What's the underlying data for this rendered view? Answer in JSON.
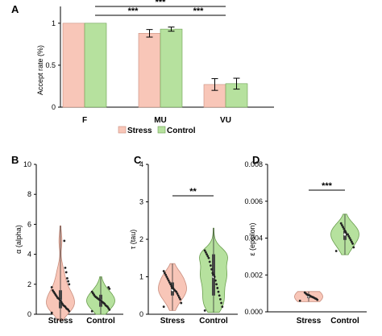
{
  "colors": {
    "stress": "#F8C6B8",
    "control": "#B6E19E",
    "stress_edge": "#c98e7e",
    "control_edge": "#6a9e4e",
    "dot": "#222222"
  },
  "chart_data": [
    {
      "panel": "A",
      "type": "bar",
      "ylabel": "Accept rate (%)",
      "ylim": [
        0,
        1.2
      ],
      "yticks": [
        "0",
        "0.5",
        "1"
      ],
      "categories": [
        "F",
        "MU",
        "VU"
      ],
      "series": [
        {
          "name": "Stress",
          "values": [
            1.0,
            0.88,
            0.27
          ],
          "errors": [
            0,
            0.045,
            0.07
          ]
        },
        {
          "name": "Control",
          "values": [
            1.0,
            0.93,
            0.28
          ],
          "errors": [
            0,
            0.025,
            0.065
          ]
        }
      ],
      "legend_position": "bottom",
      "significance": [
        {
          "from": "F",
          "to": "MU",
          "label": "***"
        },
        {
          "from": "F",
          "to": "VU",
          "label": "***"
        },
        {
          "from": "MU",
          "to": "VU",
          "label": "***"
        }
      ]
    },
    {
      "panel": "B",
      "type": "violin",
      "ylabel": "α (alpha)",
      "ylim": [
        0,
        10
      ],
      "yticks": [
        "0",
        "2",
        "4",
        "6",
        "8",
        "10"
      ],
      "categories": [
        "Stress",
        "Control"
      ],
      "groups": [
        {
          "name": "Stress",
          "median": 0.9,
          "q1": 0.4,
          "q3": 1.6,
          "min": -0.4,
          "max": 5.9,
          "points": [
            0.1,
            0.2,
            0.3,
            0.35,
            0.4,
            0.5,
            0.55,
            0.6,
            0.7,
            0.8,
            0.9,
            1.0,
            1.05,
            1.1,
            1.2,
            1.3,
            1.4,
            1.5,
            1.6,
            1.8,
            2.0,
            2.2,
            2.4,
            2.8,
            3.1,
            4.9
          ]
        },
        {
          "name": "Control",
          "median": 0.9,
          "q1": 0.5,
          "q3": 1.3,
          "min": 0,
          "max": 2.5,
          "points": [
            0.2,
            0.3,
            0.4,
            0.5,
            0.55,
            0.6,
            0.7,
            0.75,
            0.8,
            0.85,
            0.9,
            0.95,
            1.0,
            1.05,
            1.1,
            1.15,
            1.2,
            1.3,
            1.4,
            1.5,
            1.7,
            1.8
          ]
        }
      ]
    },
    {
      "panel": "C",
      "type": "violin",
      "ylabel": "τ (tau)",
      "ylim": [
        0,
        4
      ],
      "yticks": [
        "0",
        "1",
        "2",
        "3",
        "4"
      ],
      "categories": [
        "Stress",
        "Control"
      ],
      "significance": [
        {
          "from": "Stress",
          "to": "Control",
          "label": "**"
        }
      ],
      "groups": [
        {
          "name": "Stress",
          "median": 0.65,
          "q1": 0.5,
          "q3": 0.85,
          "min": 0.1,
          "max": 1.35,
          "points": [
            0.2,
            0.3,
            0.4,
            0.45,
            0.5,
            0.55,
            0.6,
            0.62,
            0.65,
            0.68,
            0.7,
            0.75,
            0.8,
            0.85,
            0.9,
            0.95,
            1.0,
            1.05,
            1.1,
            1.15
          ]
        },
        {
          "name": "Control",
          "median": 1.0,
          "q1": 0.5,
          "q3": 1.6,
          "min": 0.05,
          "max": 2.3,
          "points": [
            0.1,
            0.2,
            0.3,
            0.4,
            0.5,
            0.6,
            0.7,
            0.8,
            0.9,
            1.0,
            1.05,
            1.1,
            1.2,
            1.3,
            1.4,
            1.5,
            1.55,
            1.6,
            1.65,
            1.7
          ]
        }
      ]
    },
    {
      "panel": "D",
      "type": "violin",
      "ylabel": "ε (epsilon)",
      "ylim": [
        0,
        0.008
      ],
      "yticks": [
        "0.000",
        "0.002",
        "0.004",
        "0.006",
        "0.008"
      ],
      "categories": [
        "Stress",
        "Control"
      ],
      "significance": [
        {
          "from": "Stress",
          "to": "Control",
          "label": "***"
        }
      ],
      "groups": [
        {
          "name": "Stress",
          "median": 0.00085,
          "q1": 0.00075,
          "q3": 0.00095,
          "min": 0.00055,
          "max": 0.0011,
          "points": [
            0.0006,
            0.00065,
            0.0007,
            0.00072,
            0.00075,
            0.00078,
            0.0008,
            0.00082,
            0.00085,
            0.00088,
            0.0009,
            0.00092,
            0.00095,
            0.001,
            0.00105
          ]
        },
        {
          "name": "Control",
          "median": 0.0042,
          "q1": 0.0039,
          "q3": 0.0044,
          "min": 0.0031,
          "max": 0.0053,
          "points": [
            0.0033,
            0.0035,
            0.0037,
            0.0038,
            0.0039,
            0.004,
            0.0041,
            0.0042,
            0.0042,
            0.0043,
            0.0044,
            0.0045,
            0.0046,
            0.0047,
            0.0048
          ]
        }
      ]
    }
  ]
}
